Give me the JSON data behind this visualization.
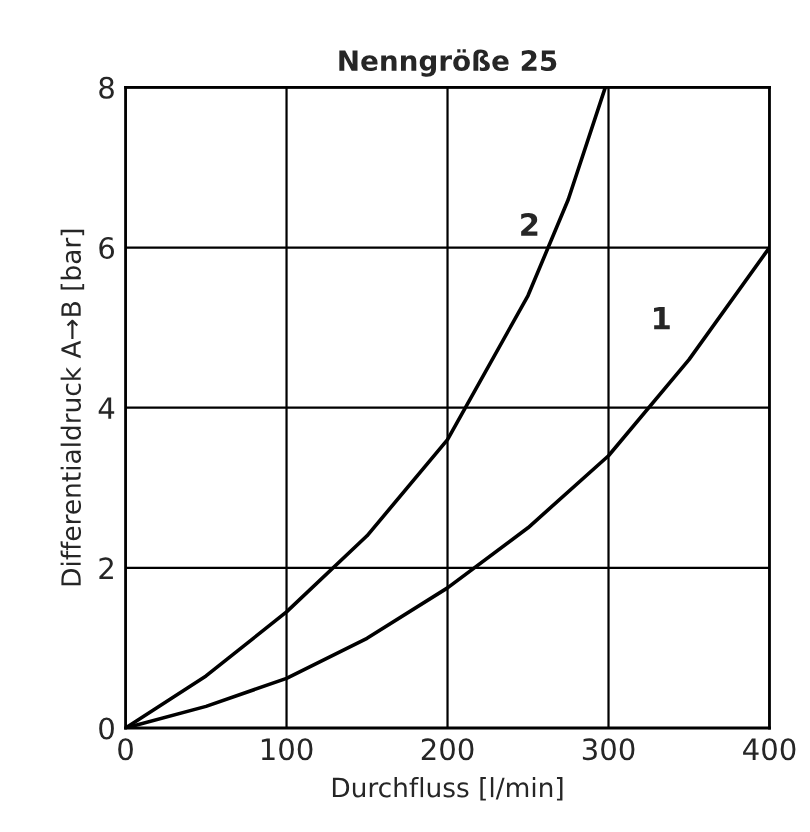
{
  "chart_data": {
    "type": "line",
    "title": "Nenngröße 25",
    "xlabel": "Durchfluss [l/min]",
    "ylabel": "Differentialdruck A→B [bar]",
    "xlim": [
      0,
      400
    ],
    "ylim": [
      0,
      8
    ],
    "xticks": [
      0,
      100,
      200,
      300,
      400
    ],
    "yticks": [
      0,
      2,
      4,
      6,
      8
    ],
    "grid": true,
    "marker": "none",
    "line_style": "solid",
    "series": [
      {
        "name": "1",
        "color": "#000000",
        "x": [
          0,
          50,
          100,
          150,
          200,
          250,
          300,
          350,
          400
        ],
        "values": [
          0,
          0.27,
          0.62,
          1.12,
          1.75,
          2.5,
          3.4,
          4.6,
          6.0
        ]
      },
      {
        "name": "2",
        "color": "#000000",
        "x": [
          0,
          50,
          100,
          150,
          200,
          250,
          275,
          298
        ],
        "values": [
          0,
          0.65,
          1.45,
          2.4,
          3.6,
          5.4,
          6.6,
          8.0
        ]
      }
    ]
  }
}
